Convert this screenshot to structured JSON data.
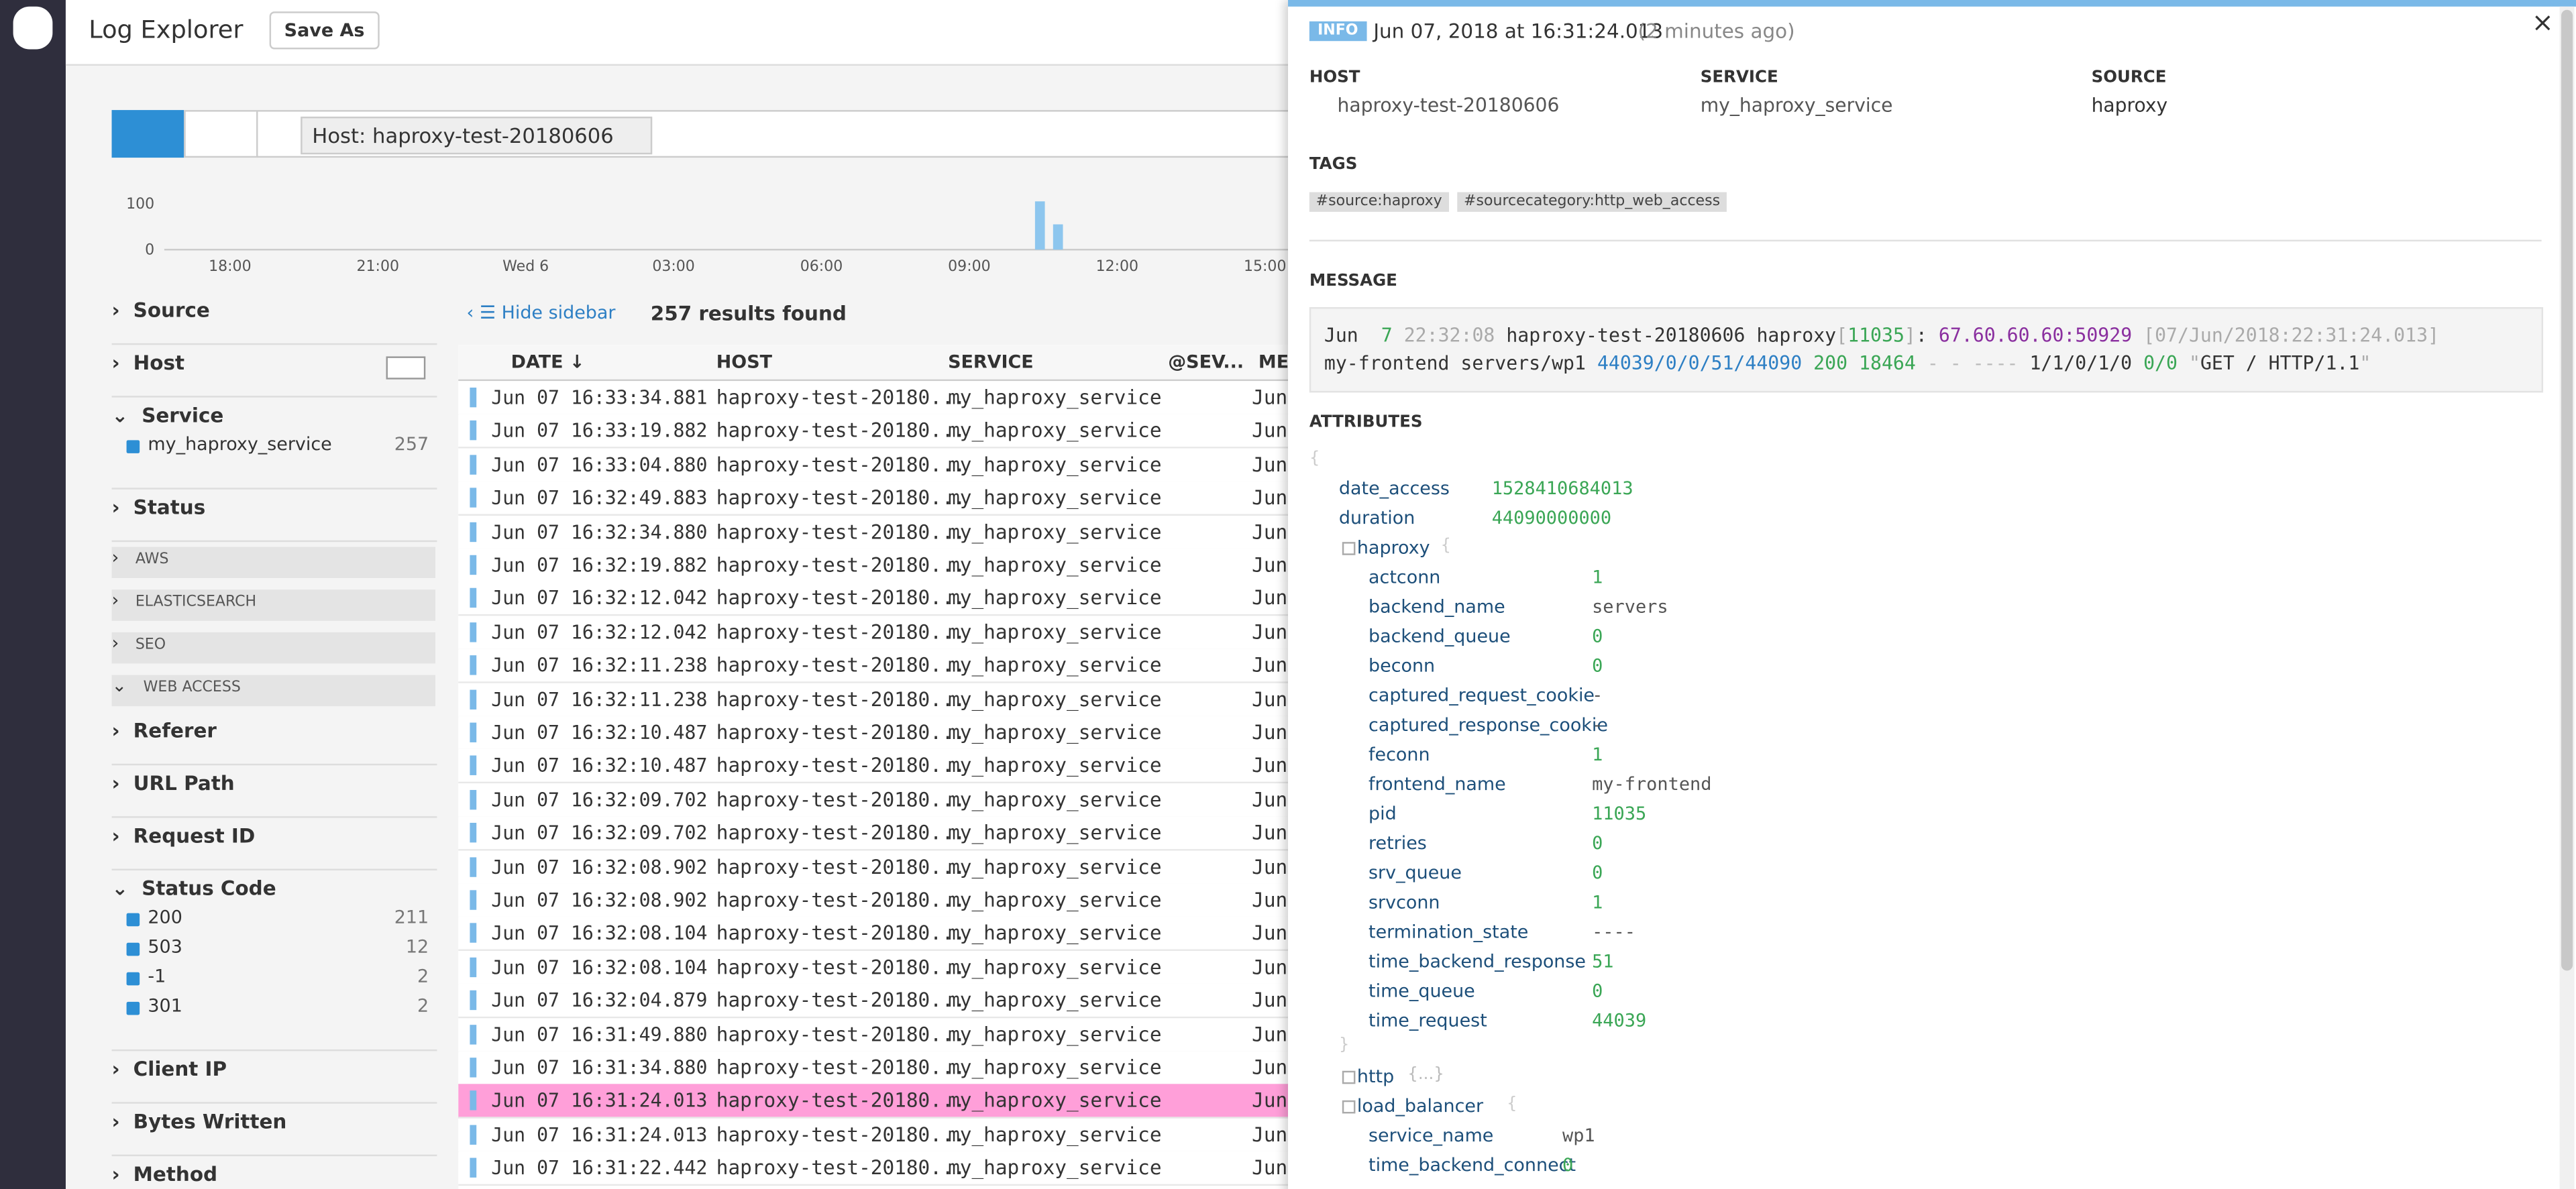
{
  "header": {
    "title": "Log Explorer",
    "save_button": "Save As"
  },
  "search": {
    "query": "Host: haproxy-test-20180606"
  },
  "histogram": {
    "yticks": [
      0,
      100
    ],
    "ylim": [
      0,
      100
    ],
    "xticks": [
      "18:00",
      "21:00",
      "Wed 6",
      "03:00",
      "06:00",
      "09:00",
      "12:00",
      "15:00"
    ],
    "values": [
      105,
      55
    ]
  },
  "facets": [
    {
      "label": "Source",
      "open": false
    },
    {
      "label": "Host",
      "open": false
    },
    {
      "label": "Service",
      "open": true,
      "items": [
        {
          "label": "my_haproxy_service",
          "count": "257"
        }
      ]
    },
    {
      "label": "Status",
      "open": false
    },
    {
      "group": "AWS"
    },
    {
      "group": "ELASTICSEARCH"
    },
    {
      "group": "SEO"
    },
    {
      "group": "WEB ACCESS"
    },
    {
      "label": "Referer",
      "open": false
    },
    {
      "label": "URL Path",
      "open": false
    },
    {
      "label": "Request ID",
      "open": false
    },
    {
      "label": "Status Code",
      "open": true,
      "items": [
        {
          "label": "200",
          "count": "211"
        },
        {
          "label": "503",
          "count": "12"
        },
        {
          "label": "-1",
          "count": "2"
        },
        {
          "label": "301",
          "count": "2"
        }
      ]
    },
    {
      "label": "Client IP",
      "open": false
    },
    {
      "label": "Bytes Written",
      "open": false
    },
    {
      "label": "Method",
      "open": false
    }
  ],
  "results": {
    "hide_sidebar": "Hide sidebar",
    "count_text": "257 results found"
  },
  "table": {
    "columns": [
      "DATE ↓",
      "HOST",
      "SERVICE",
      "@SEV...",
      "MES"
    ],
    "selected_row": 21,
    "rows": [
      [
        "Jun 07 16:33:34.881",
        "haproxy-test-20180...",
        "my_haproxy_service",
        "Jun"
      ],
      [
        "Jun 07 16:33:19.882",
        "haproxy-test-20180...",
        "my_haproxy_service",
        "Jun"
      ],
      [
        "Jun 07 16:33:04.880",
        "haproxy-test-20180...",
        "my_haproxy_service",
        "Jun"
      ],
      [
        "Jun 07 16:32:49.883",
        "haproxy-test-20180...",
        "my_haproxy_service",
        "Jun"
      ],
      [
        "Jun 07 16:32:34.880",
        "haproxy-test-20180...",
        "my_haproxy_service",
        "Jun"
      ],
      [
        "Jun 07 16:32:19.882",
        "haproxy-test-20180...",
        "my_haproxy_service",
        "Jun"
      ],
      [
        "Jun 07 16:32:12.042",
        "haproxy-test-20180...",
        "my_haproxy_service",
        "Jun"
      ],
      [
        "Jun 07 16:32:12.042",
        "haproxy-test-20180...",
        "my_haproxy_service",
        "Jun"
      ],
      [
        "Jun 07 16:32:11.238",
        "haproxy-test-20180...",
        "my_haproxy_service",
        "Jun"
      ],
      [
        "Jun 07 16:32:11.238",
        "haproxy-test-20180...",
        "my_haproxy_service",
        "Jun"
      ],
      [
        "Jun 07 16:32:10.487",
        "haproxy-test-20180...",
        "my_haproxy_service",
        "Jun"
      ],
      [
        "Jun 07 16:32:10.487",
        "haproxy-test-20180...",
        "my_haproxy_service",
        "Jun"
      ],
      [
        "Jun 07 16:32:09.702",
        "haproxy-test-20180...",
        "my_haproxy_service",
        "Jun"
      ],
      [
        "Jun 07 16:32:09.702",
        "haproxy-test-20180...",
        "my_haproxy_service",
        "Jun"
      ],
      [
        "Jun 07 16:32:08.902",
        "haproxy-test-20180...",
        "my_haproxy_service",
        "Jun"
      ],
      [
        "Jun 07 16:32:08.902",
        "haproxy-test-20180...",
        "my_haproxy_service",
        "Jun"
      ],
      [
        "Jun 07 16:32:08.104",
        "haproxy-test-20180...",
        "my_haproxy_service",
        "Jun"
      ],
      [
        "Jun 07 16:32:08.104",
        "haproxy-test-20180...",
        "my_haproxy_service",
        "Jun"
      ],
      [
        "Jun 07 16:32:04.879",
        "haproxy-test-20180...",
        "my_haproxy_service",
        "Jun"
      ],
      [
        "Jun 07 16:31:49.880",
        "haproxy-test-20180...",
        "my_haproxy_service",
        "Jun"
      ],
      [
        "Jun 07 16:31:34.880",
        "haproxy-test-20180...",
        "my_haproxy_service",
        "Jun"
      ],
      [
        "Jun 07 16:31:24.013",
        "haproxy-test-20180...",
        "my_haproxy_service",
        "Jun"
      ],
      [
        "Jun 07 16:31:24.013",
        "haproxy-test-20180...",
        "my_haproxy_service",
        "Jun"
      ],
      [
        "Jun 07 16:31:22.442",
        "haproxy-test-20180...",
        "my_haproxy_service",
        "Jun"
      ]
    ]
  },
  "detail": {
    "status": "INFO",
    "timestamp": "Jun 07, 2018 at 16:31:24.013",
    "relative": "(2 minutes ago)",
    "fields": [
      {
        "label": "HOST",
        "value": "haproxy-test-20180606"
      },
      {
        "label": "SERVICE",
        "value": "my_haproxy_service"
      },
      {
        "label": "SOURCE",
        "value": "haproxy"
      }
    ],
    "tags_label": "TAGS",
    "tags": [
      "#source:haproxy",
      "#sourcecategory:http_web_access"
    ],
    "message_label": "MESSAGE",
    "message": [
      [
        {
          "text": "Jun",
          "color": "#333333"
        }
      ],
      [
        {
          "text": " 7",
          "color": "#3aa655"
        }
      ],
      [
        {
          "text": "22:32:08",
          "color": "#aaaaaa"
        }
      ],
      [
        {
          "text": "haproxy-test-20180606",
          "color": "#333333"
        }
      ],
      [
        {
          "text": "haproxy",
          "color": "#333333"
        },
        {
          "text": "[",
          "color": "#aaaaaa"
        },
        {
          "text": "11035",
          "color": "#3aa655"
        },
        {
          "text": "]",
          "color": "#aaaaaa"
        },
        {
          "text": ":",
          "color": "#333333"
        }
      ],
      [
        {
          "text": "67.60.60.60:50929",
          "color": "#8a2f9f"
        }
      ],
      [
        {
          "text": "[07/Jun/2018:22:31:24.013]",
          "color": "#aaaaaa"
        }
      ],
      [
        {
          "text": "my-frontend",
          "color": "#333333"
        }
      ],
      [
        {
          "text": "servers/wp1",
          "color": "#333333"
        }
      ],
      [
        {
          "text": "44039/0/0/51/44090",
          "color": "#2d7fc4"
        }
      ],
      [
        {
          "text": "200",
          "color": "#3aa655"
        }
      ],
      [
        {
          "text": "18464",
          "color": "#3aa655"
        }
      ],
      [
        {
          "text": "- - ----",
          "color": "#bbbbbb"
        }
      ],
      [
        {
          "text": "1/1/0/1/0",
          "color": "#333333"
        }
      ],
      [
        {
          "text": "0/0",
          "color": "#3aa655"
        }
      ],
      [
        {
          "text": "\"",
          "color": "#aaaaaa"
        },
        {
          "text": "GET / HTTP/1.1",
          "color": "#333333"
        },
        {
          "text": "\"",
          "color": "#aaaaaa"
        }
      ]
    ],
    "attributes_label": "ATTRIBUTES",
    "attributes": {
      "open": "{",
      "items": [
        {
          "key": "date_access",
          "value": "1528410684013"
        },
        {
          "key": "duration",
          "value": "44090000000"
        },
        {
          "key": "haproxy",
          "open": "{",
          "close": "}",
          "children": [
            {
              "key": "actconn",
              "value": "1"
            },
            {
              "key": "backend_name",
              "value": "servers"
            },
            {
              "key": "backend_queue",
              "value": "0"
            },
            {
              "key": "beconn",
              "value": "0"
            },
            {
              "key": "captured_request_cookie",
              "value": "-"
            },
            {
              "key": "captured_response_cookie",
              "value": "-"
            },
            {
              "key": "feconn",
              "value": "1"
            },
            {
              "key": "frontend_name",
              "value": "my-frontend"
            },
            {
              "key": "pid",
              "value": "11035"
            },
            {
              "key": "retries",
              "value": "0"
            },
            {
              "key": "srv_queue",
              "value": "0"
            },
            {
              "key": "srvconn",
              "value": "1"
            },
            {
              "key": "termination_state",
              "value": "----"
            },
            {
              "key": "time_backend_response",
              "value": "51"
            },
            {
              "key": "time_queue",
              "value": "0"
            },
            {
              "key": "time_request",
              "value": "44039"
            }
          ]
        },
        {
          "key": "http",
          "collapsed": "{...}"
        },
        {
          "key": "load_balancer",
          "open": "{",
          "children": [
            {
              "key": "service_name",
              "value": "wp1"
            },
            {
              "key": "time_backend_connect",
              "value": "0"
            }
          ]
        }
      ]
    }
  }
}
